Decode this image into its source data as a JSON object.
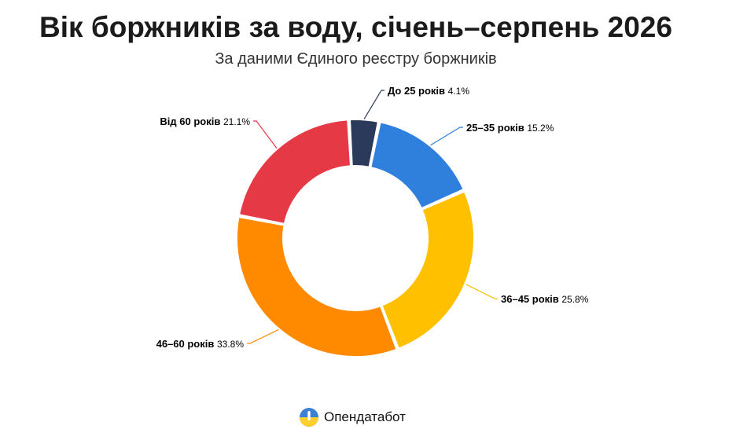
{
  "chart_data": {
    "type": "pie",
    "title": "Вік боржників за воду, січень–серпень 2026",
    "subtitle": "За даними Єдиного реєстру боржників",
    "slices": [
      {
        "name": "До 25 років",
        "value": 4.1,
        "value_label": "4.1%",
        "color": "#2b3a5a"
      },
      {
        "name": "25–35 років",
        "value": 15.2,
        "value_label": "15.2%",
        "color": "#2f80dc"
      },
      {
        "name": "36–45 років",
        "value": 25.8,
        "value_label": "25.8%",
        "color": "#ffc000"
      },
      {
        "name": "46–60 років",
        "value": 33.8,
        "value_label": "33.8%",
        "color": "#ff8a00"
      },
      {
        "name": "Від 60 років",
        "value": 21.1,
        "value_label": "21.1%",
        "color": "#e63946"
      }
    ]
  },
  "brand": {
    "name": "Опендатабот",
    "icon": "opendatabot-logo"
  }
}
